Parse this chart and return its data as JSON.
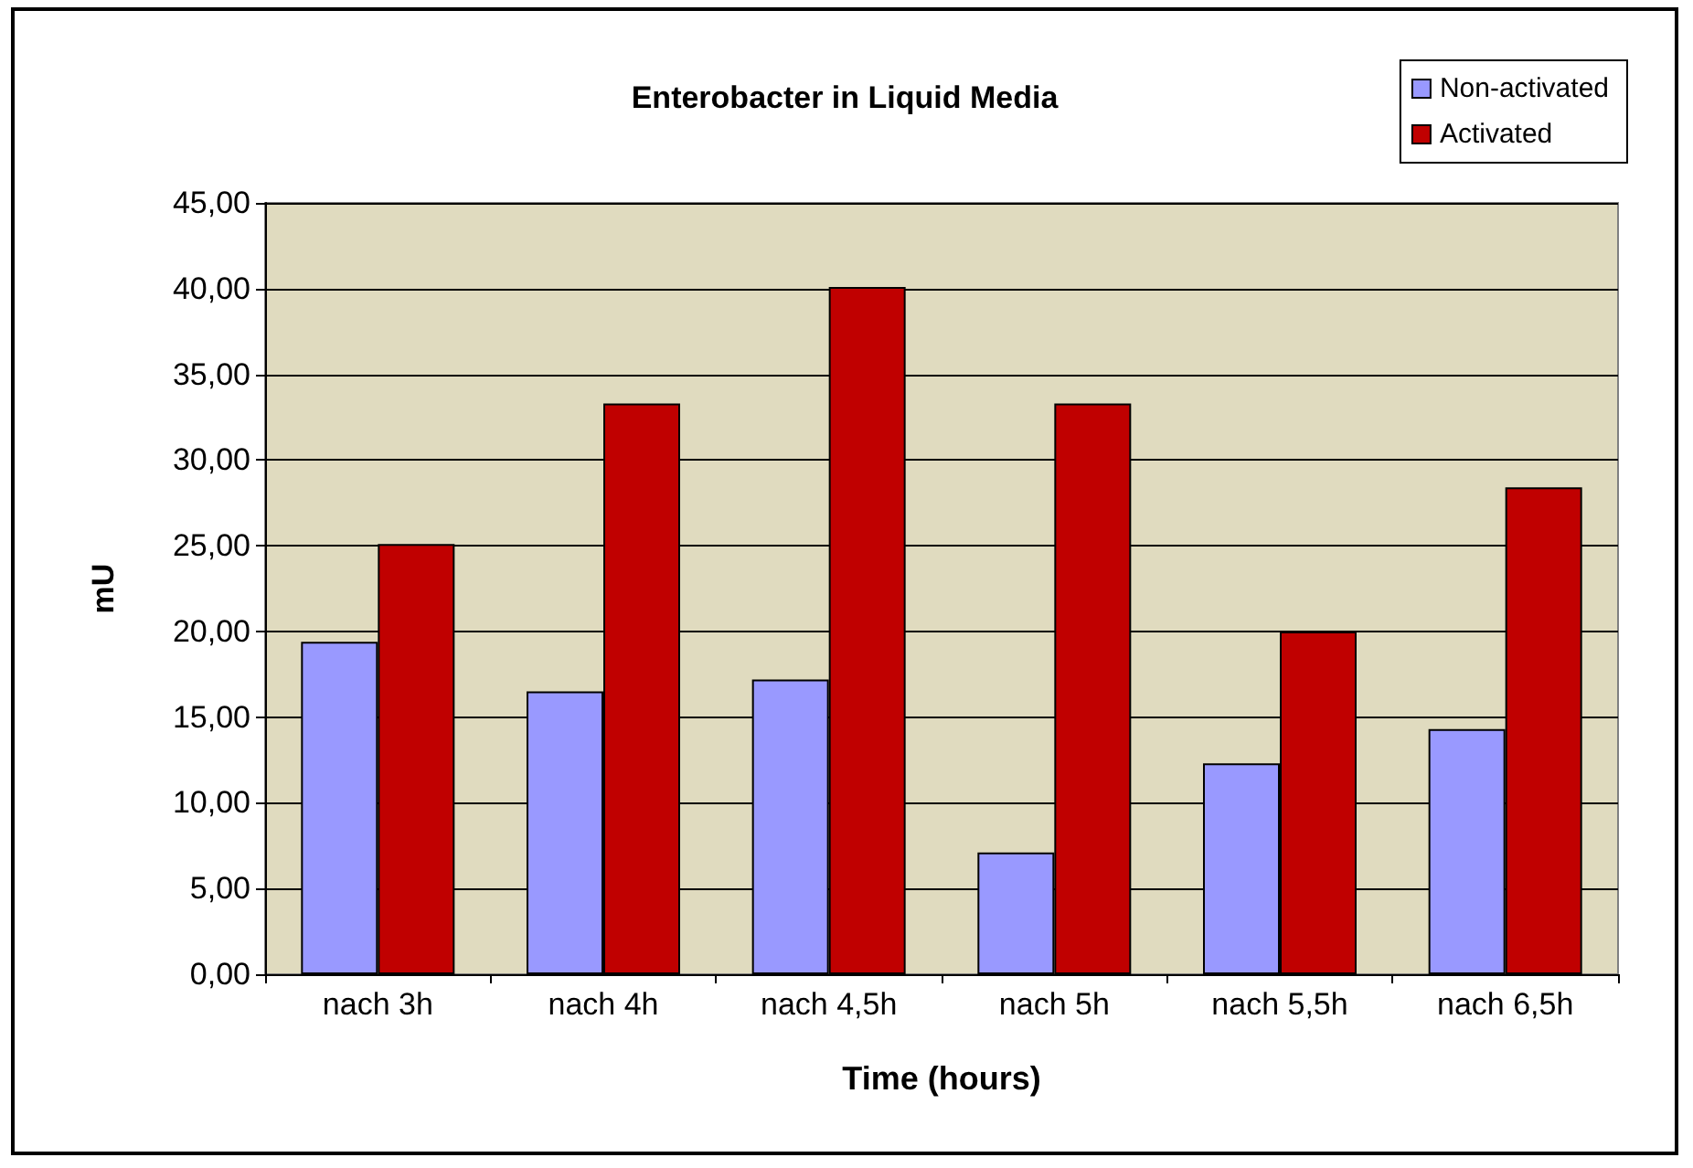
{
  "chart_data": {
    "type": "bar",
    "title": "Enterobacter in Liquid Media",
    "xlabel": "Time (hours)",
    "ylabel": "mU",
    "categories": [
      "nach 3h",
      "nach 4h",
      "nach 4,5h",
      "nach 5h",
      "nach 5,5h",
      "nach 6,5h"
    ],
    "series": [
      {
        "name": "Non-activated",
        "color": "#9999ff",
        "values": [
          19.4,
          16.5,
          17.2,
          7.1,
          12.3,
          14.3
        ]
      },
      {
        "name": "Activated",
        "color": "#c00000",
        "values": [
          25.1,
          33.3,
          40.1,
          33.3,
          20.0,
          28.4
        ]
      }
    ],
    "ylim": [
      0,
      45
    ],
    "yticks": [
      {
        "value": 0,
        "label": "0,00"
      },
      {
        "value": 5,
        "label": "5,00"
      },
      {
        "value": 10,
        "label": "10,00"
      },
      {
        "value": 15,
        "label": "15,00"
      },
      {
        "value": 20,
        "label": "20,00"
      },
      {
        "value": 25,
        "label": "25,00"
      },
      {
        "value": 30,
        "label": "30,00"
      },
      {
        "value": 35,
        "label": "35,00"
      },
      {
        "value": 40,
        "label": "40,00"
      },
      {
        "value": 45,
        "label": "45,00"
      }
    ],
    "grid": "y",
    "legend": "top right"
  }
}
